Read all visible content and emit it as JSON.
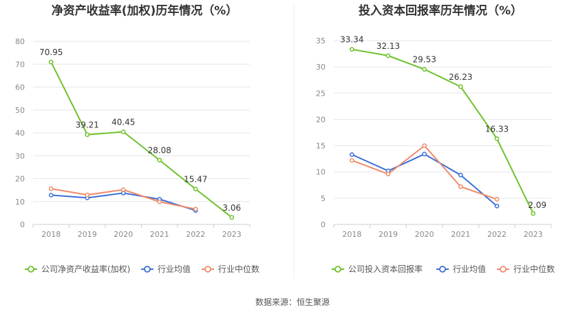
{
  "source_label": "数据来源：恒生聚源",
  "colors": {
    "company": "#6dc22b",
    "avg": "#3a6fd6",
    "median": "#f08a6a",
    "grid": "#e6e6e6",
    "axis": "#cccccc"
  },
  "chart_data": [
    {
      "type": "line",
      "title": "净资产收益率(加权)历年情况（%）",
      "categories": [
        "2018",
        "2019",
        "2020",
        "2021",
        "2022",
        "2023"
      ],
      "ylim": [
        0,
        80
      ],
      "yticks": [
        0,
        10,
        20,
        30,
        40,
        50,
        60,
        70,
        80
      ],
      "grid": true,
      "legend_position": "bottom",
      "series": [
        {
          "name": "公司净资产收益率(加权)",
          "values": [
            70.95,
            39.21,
            40.45,
            28.08,
            15.47,
            3.06
          ],
          "labels": [
            "70.95",
            "39.21",
            "40.45",
            "28.08",
            "15.47",
            "3.06"
          ]
        },
        {
          "name": "行业均值",
          "values": [
            12.8,
            11.6,
            13.7,
            11.0,
            6.1,
            null
          ]
        },
        {
          "name": "行业中位数",
          "values": [
            15.6,
            12.9,
            15.2,
            9.9,
            6.7,
            null
          ]
        }
      ]
    },
    {
      "type": "line",
      "title": "投入资本回报率历年情况（%）",
      "categories": [
        "2018",
        "2019",
        "2020",
        "2021",
        "2022",
        "2023"
      ],
      "ylim": [
        0,
        35
      ],
      "yticks": [
        0,
        5,
        10,
        15,
        20,
        25,
        30,
        35
      ],
      "grid": true,
      "legend_position": "bottom",
      "series": [
        {
          "name": "公司投入资本回报率",
          "values": [
            33.34,
            32.13,
            29.53,
            26.23,
            16.33,
            2.09
          ],
          "labels": [
            "33.34",
            "32.13",
            "29.53",
            "26.23",
            "16.33",
            "2.09"
          ]
        },
        {
          "name": "行业均值",
          "values": [
            13.3,
            10.2,
            13.4,
            9.4,
            3.5,
            null
          ]
        },
        {
          "name": "行业中位数",
          "values": [
            12.2,
            9.6,
            15.0,
            7.2,
            4.8,
            null
          ]
        }
      ]
    }
  ]
}
